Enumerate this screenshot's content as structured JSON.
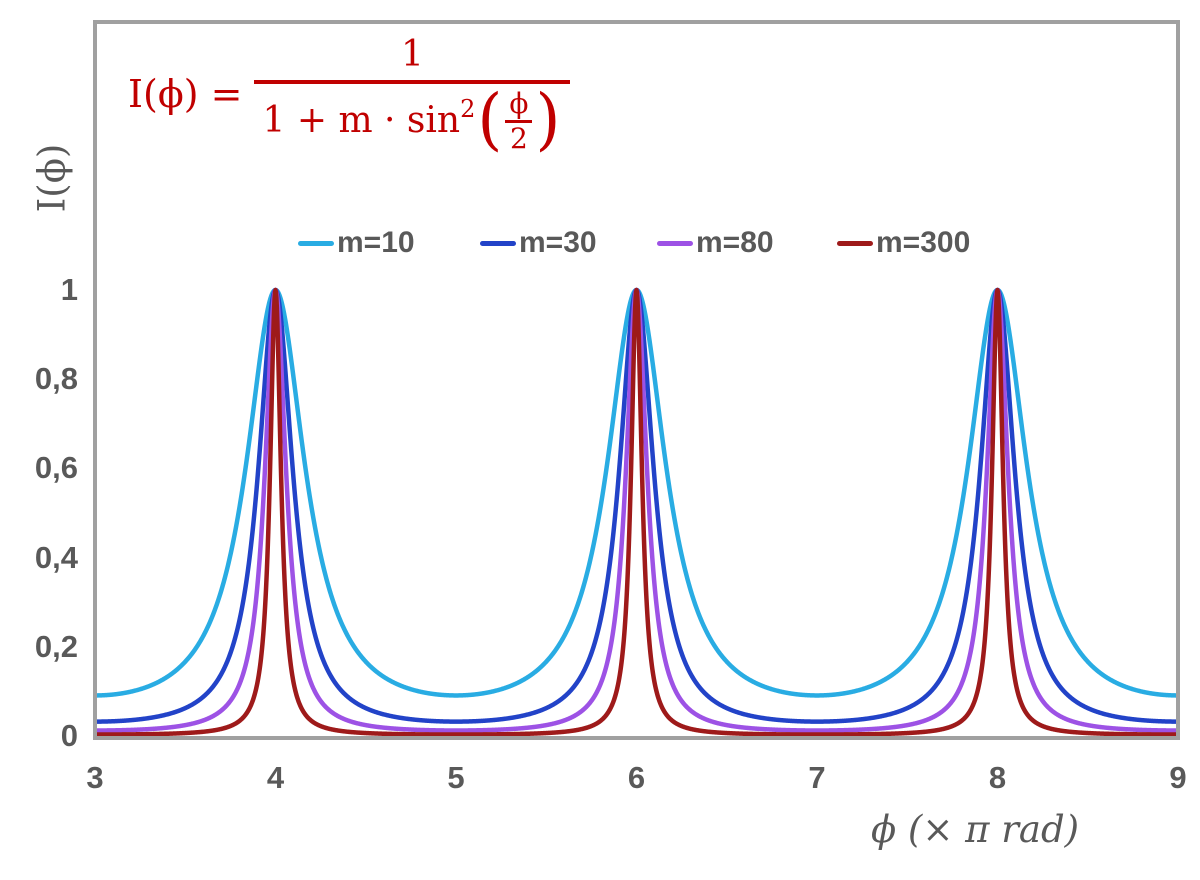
{
  "colors": {
    "formula_red": "#C00000",
    "text_gray": "#595959",
    "frame_gray": "#A0A0A0",
    "background": "#FFFFFF"
  },
  "formula": {
    "lhs": "I(ϕ) =",
    "numerator": "1",
    "denominator_prefix": "1 + m · sin",
    "denominator_exponent": "2",
    "open_paren": "(",
    "inner_numerator": "ϕ",
    "inner_denominator": "2",
    "close_paren": ")"
  },
  "axes": {
    "y_title": "I(ϕ)",
    "x_title": "ϕ  (× π rad)",
    "x_ticks": [
      {
        "label": "3",
        "value": 3
      },
      {
        "label": "4",
        "value": 4
      },
      {
        "label": "5",
        "value": 5
      },
      {
        "label": "6",
        "value": 6
      },
      {
        "label": "7",
        "value": 7
      },
      {
        "label": "8",
        "value": 8
      },
      {
        "label": "9",
        "value": 9
      }
    ],
    "y_ticks": [
      {
        "label": "0",
        "value": 0
      },
      {
        "label": "0,2",
        "value": 0.2
      },
      {
        "label": "0,4",
        "value": 0.4
      },
      {
        "label": "0,6",
        "value": 0.6
      },
      {
        "label": "0,8",
        "value": 0.8
      },
      {
        "label": "1",
        "value": 1
      }
    ]
  },
  "legend": [
    {
      "label": "m=10",
      "color": "#29ACE3"
    },
    {
      "label": "m=30",
      "color": "#2243C8"
    },
    {
      "label": "m=80",
      "color": "#9D52E5"
    },
    {
      "label": "m=300",
      "color": "#9E1A1A"
    }
  ],
  "chart_data": {
    "type": "line",
    "title": "I(ϕ) = 1 / (1 + m · sin²(ϕ/2))",
    "function": "I(x) = 1 / (1 + m * sin(x*π/2)^2), x axis in units of π rad",
    "x": {
      "label": "ϕ (× π rad)",
      "range": [
        3,
        9
      ],
      "ticks": [
        3,
        4,
        5,
        6,
        7,
        8,
        9
      ]
    },
    "y": {
      "label": "I(ϕ)",
      "range": [
        0,
        1.6
      ],
      "ticks": [
        0,
        0.2,
        0.4,
        0.6,
        0.8,
        1
      ],
      "tick_labels": [
        "0",
        "0,2",
        "0,4",
        "0,6",
        "0,8",
        "1"
      ]
    },
    "series": [
      {
        "name": "m=10",
        "m": 10,
        "color": "#29ACE3",
        "peak_value": 1,
        "min_value": 0.0909
      },
      {
        "name": "m=30",
        "m": 30,
        "color": "#2243C8",
        "peak_value": 1,
        "min_value": 0.0323
      },
      {
        "name": "m=80",
        "m": 80,
        "color": "#9D52E5",
        "peak_value": 1,
        "min_value": 0.0123
      },
      {
        "name": "m=300",
        "m": 300,
        "color": "#9E1A1A",
        "peak_value": 1,
        "min_value": 0.0033
      }
    ],
    "peaks_at_x": [
      4,
      6,
      8
    ],
    "minima_at_x": [
      3,
      5,
      7,
      9
    ],
    "grid": false,
    "legend_position": "top-center"
  }
}
